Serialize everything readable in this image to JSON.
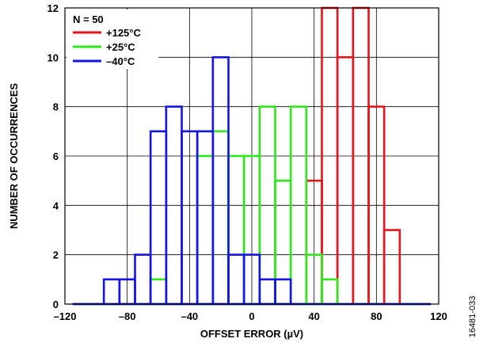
{
  "chart_data": {
    "type": "bar",
    "title": "",
    "xlabel": "OFFSET ERROR (µV)",
    "ylabel": "NUMBER OF OCCURRENCES",
    "xlim": [
      -120,
      120
    ],
    "ylim": [
      0,
      12
    ],
    "xticks": [
      -120,
      -80,
      -40,
      0,
      40,
      80,
      120
    ],
    "xtick_labels": [
      "–120",
      "–80",
      "–40",
      "0",
      "40",
      "80",
      "120"
    ],
    "yticks": [
      0,
      2,
      4,
      6,
      8,
      10,
      12
    ],
    "grid": true,
    "legend_position": "top-left",
    "legend_title": "N = 50",
    "figure_id": "16481-033",
    "series": [
      {
        "name": "+125°C",
        "color": "#e8141b",
        "bin_edges": [
          -115,
          -105,
          -95,
          -85,
          -75,
          -65,
          -55,
          -45,
          -35,
          -25,
          -15,
          -5,
          5,
          15,
          25,
          35,
          45,
          55,
          65,
          75,
          85,
          95,
          105,
          115
        ],
        "counts": [
          0,
          0,
          0,
          0,
          0,
          0,
          0,
          0,
          0,
          0,
          0,
          0,
          0,
          0,
          0,
          5,
          12,
          10,
          12,
          8,
          3,
          0,
          0
        ]
      },
      {
        "name": "+25°C",
        "color": "#2ee81b",
        "bin_edges": [
          -115,
          -105,
          -95,
          -85,
          -75,
          -65,
          -55,
          -45,
          -35,
          -25,
          -15,
          -5,
          5,
          15,
          25,
          35,
          45,
          55,
          65,
          75,
          85,
          95,
          105,
          115
        ],
        "counts": [
          0,
          0,
          0,
          0,
          0,
          1,
          0,
          0,
          6,
          7,
          6,
          6,
          8,
          5,
          8,
          2,
          1,
          0,
          0,
          0,
          0,
          0,
          0
        ]
      },
      {
        "name": "–40°C",
        "color": "#1414e8",
        "bin_edges": [
          -115,
          -105,
          -95,
          -85,
          -75,
          -65,
          -55,
          -45,
          -35,
          -25,
          -15,
          -5,
          5,
          15,
          25,
          35,
          45,
          55,
          65,
          75,
          85,
          95,
          105,
          115
        ],
        "counts": [
          0,
          0,
          1,
          1,
          2,
          7,
          8,
          7,
          7,
          10,
          2,
          2,
          1,
          1,
          0,
          0,
          0,
          0,
          0,
          0,
          0,
          0,
          0
        ]
      }
    ]
  }
}
